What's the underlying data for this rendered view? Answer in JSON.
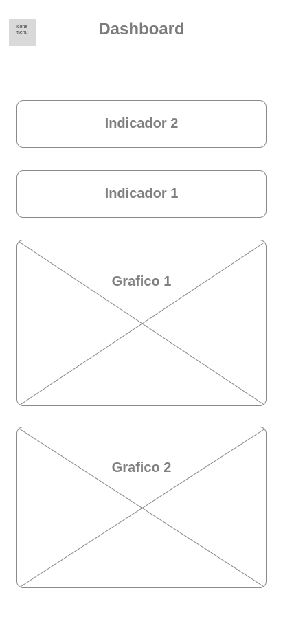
{
  "header": {
    "menu_icon_line1": "Icone",
    "menu_icon_line2": "menu",
    "title": "Dashboard"
  },
  "cards": {
    "indicator_2": "Indicador 2",
    "indicator_1": "Indicador 1",
    "chart_1": "Grafico 1",
    "chart_2": "Grafico 2"
  },
  "colors": {
    "placeholder_gray": "#d9d9d9",
    "text_gray": "#808080",
    "border_gray": "#8a8a8a"
  }
}
